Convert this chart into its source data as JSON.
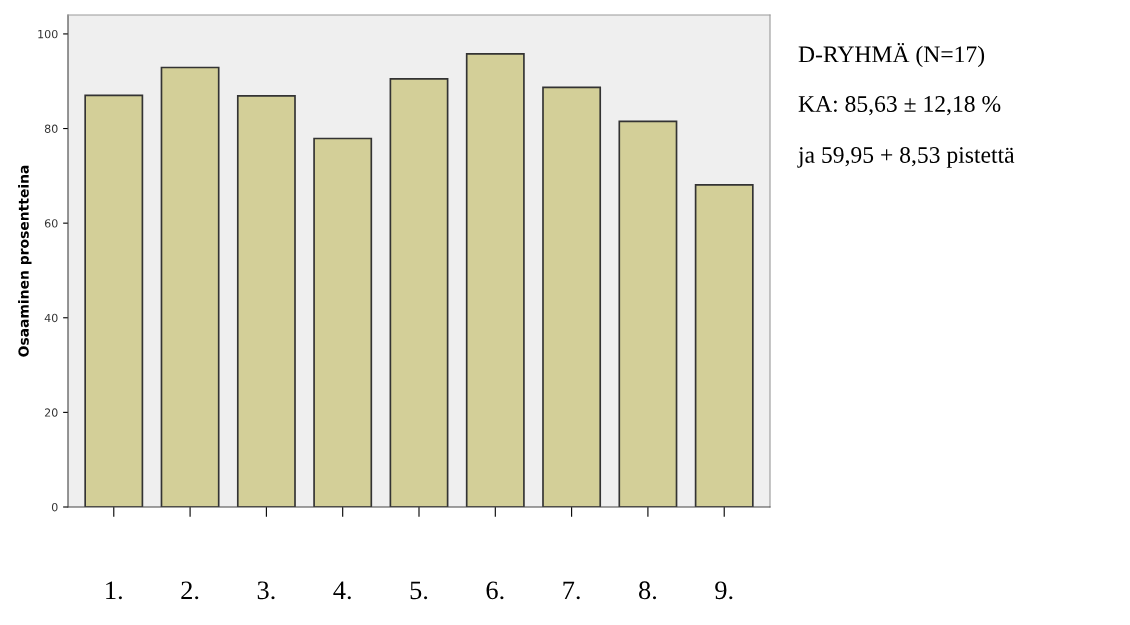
{
  "chart_data": {
    "type": "bar",
    "ylabel": "Osaaminen prosentteina",
    "categories": [
      "1.",
      "2.",
      "3.",
      "4.",
      "5.",
      "6.",
      "7.",
      "8.",
      "9."
    ],
    "values": [
      87.0,
      92.9,
      86.9,
      77.9,
      90.5,
      95.8,
      88.7,
      81.5,
      68.1
    ],
    "color": "#d3cf98",
    "ylim": [
      0,
      104
    ],
    "yticks": [
      0,
      20,
      40,
      60,
      80,
      100
    ],
    "grid": false,
    "annotations": [
      "D-RYHMÄ (N=17)",
      "KA: 85,63 ± 12,18 %",
      "ja 59,95 + 8,53 pistettä"
    ]
  }
}
